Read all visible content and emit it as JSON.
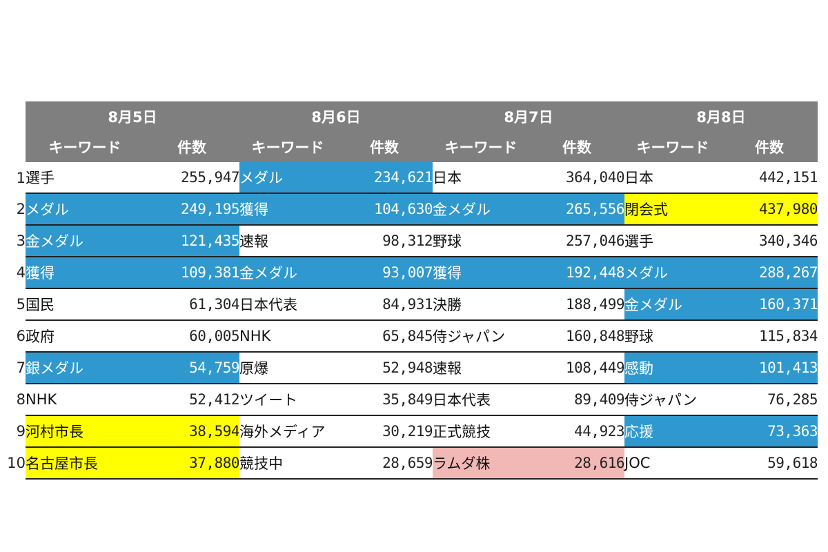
{
  "colors": {
    "header": "#7f7f7f",
    "blue": "#2f99cf",
    "yellow": "#ffff00",
    "pink": "#f2b8b5"
  },
  "columns": {
    "keyword": "キーワード",
    "count": "件数"
  },
  "days": [
    {
      "date": "8月5日",
      "rows": [
        {
          "rank": "1",
          "keyword": "選手",
          "count": "255,947",
          "highlight": ""
        },
        {
          "rank": "2",
          "keyword": "メダル",
          "count": "249,195",
          "highlight": "blue"
        },
        {
          "rank": "3",
          "keyword": "金メダル",
          "count": "121,435",
          "highlight": "blue"
        },
        {
          "rank": "4",
          "keyword": "獲得",
          "count": "109,381",
          "highlight": "blue"
        },
        {
          "rank": "5",
          "keyword": "国民",
          "count": "61,304",
          "highlight": ""
        },
        {
          "rank": "6",
          "keyword": "政府",
          "count": "60,005",
          "highlight": ""
        },
        {
          "rank": "7",
          "keyword": "銀メダル",
          "count": "54,759",
          "highlight": "blue"
        },
        {
          "rank": "8",
          "keyword": "NHK",
          "count": "52,412",
          "highlight": ""
        },
        {
          "rank": "9",
          "keyword": "河村市長",
          "count": "38,594",
          "highlight": "yellow"
        },
        {
          "rank": "10",
          "keyword": "名古屋市長",
          "count": "37,880",
          "highlight": "yellow"
        }
      ]
    },
    {
      "date": "8月6日",
      "rows": [
        {
          "keyword": "メダル",
          "count": "234,621",
          "highlight": "blue"
        },
        {
          "keyword": "獲得",
          "count": "104,630",
          "highlight": "blue"
        },
        {
          "keyword": "速報",
          "count": "98,312",
          "highlight": ""
        },
        {
          "keyword": "金メダル",
          "count": "93,007",
          "highlight": "blue"
        },
        {
          "keyword": "日本代表",
          "count": "84,931",
          "highlight": ""
        },
        {
          "keyword": "NHK",
          "count": "65,845",
          "highlight": ""
        },
        {
          "keyword": "原爆",
          "count": "52,948",
          "highlight": ""
        },
        {
          "keyword": "ツイート",
          "count": "35,849",
          "highlight": ""
        },
        {
          "keyword": "海外メディア",
          "count": "30,219",
          "highlight": ""
        },
        {
          "keyword": "競技中",
          "count": "28,659",
          "highlight": ""
        }
      ]
    },
    {
      "date": "8月7日",
      "rows": [
        {
          "keyword": "日本",
          "count": "364,040",
          "highlight": ""
        },
        {
          "keyword": "金メダル",
          "count": "265,556",
          "highlight": "blue"
        },
        {
          "keyword": "野球",
          "count": "257,046",
          "highlight": ""
        },
        {
          "keyword": "獲得",
          "count": "192,448",
          "highlight": "blue"
        },
        {
          "keyword": "決勝",
          "count": "188,499",
          "highlight": ""
        },
        {
          "keyword": "侍ジャパン",
          "count": "160,848",
          "highlight": ""
        },
        {
          "keyword": "速報",
          "count": "108,449",
          "highlight": ""
        },
        {
          "keyword": "日本代表",
          "count": "89,409",
          "highlight": ""
        },
        {
          "keyword": "正式競技",
          "count": "44,923",
          "highlight": ""
        },
        {
          "keyword": "ラムダ株",
          "count": "28,616",
          "highlight": "pink"
        }
      ]
    },
    {
      "date": "8月8日",
      "rows": [
        {
          "keyword": "日本",
          "count": "442,151",
          "highlight": ""
        },
        {
          "keyword": "閉会式",
          "count": "437,980",
          "highlight": "yellow"
        },
        {
          "keyword": "選手",
          "count": "340,346",
          "highlight": ""
        },
        {
          "keyword": "メダル",
          "count": "288,267",
          "highlight": "blue"
        },
        {
          "keyword": "金メダル",
          "count": "160,371",
          "highlight": "blue"
        },
        {
          "keyword": "野球",
          "count": "115,834",
          "highlight": ""
        },
        {
          "keyword": "感動",
          "count": "101,413",
          "highlight": "blue"
        },
        {
          "keyword": "侍ジャパン",
          "count": "76,285",
          "highlight": ""
        },
        {
          "keyword": "応援",
          "count": "73,363",
          "highlight": "blue"
        },
        {
          "keyword": "JOC",
          "count": "59,618",
          "highlight": ""
        }
      ]
    }
  ]
}
